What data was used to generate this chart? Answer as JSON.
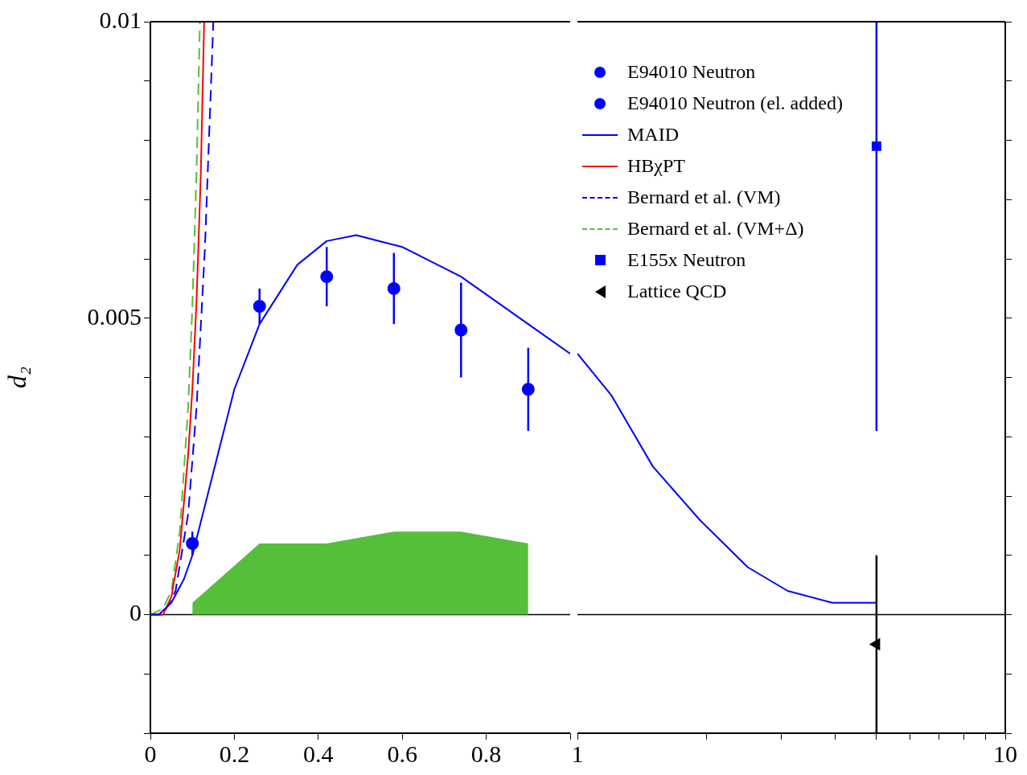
{
  "chart_data": [
    {
      "type": "scatter",
      "ylabel": "d₂",
      "xlim": [
        0,
        1
      ],
      "xticks": [
        0,
        0.2,
        0.4,
        0.6,
        0.8,
        {
          "value": 1,
          "label": null
        }
      ],
      "ylim": [
        -0.002,
        0.01
      ],
      "yticks": [
        {
          "value": -0.002,
          "label": null
        },
        {
          "value": -0.001,
          "label": null
        },
        0,
        {
          "value": 0.001,
          "label": null
        },
        {
          "value": 0.002,
          "label": null
        },
        {
          "value": 0.003,
          "label": null
        },
        {
          "value": 0.004,
          "label": null
        },
        0.005,
        {
          "value": 0.006,
          "label": null
        },
        {
          "value": 0.007,
          "label": null
        },
        {
          "value": 0.008,
          "label": null
        },
        {
          "value": 0.009,
          "label": null
        },
        0.01
      ],
      "grid": false,
      "legend": "top right",
      "ref_lines": [
        {
          "axis": "y",
          "value": 0,
          "color": "#000000"
        }
      ],
      "series": [
        {
          "type": "area",
          "color": "#55bf3b",
          "x": [
            0.1,
            0.26,
            0.42,
            0.58,
            0.74,
            0.9
          ],
          "values": [
            0.0002,
            0.0012,
            0.0012,
            0.0014,
            0.0014,
            0.0012
          ]
        },
        {
          "name": "E94010 Neutron",
          "color": "#0000ff",
          "marker": "circle",
          "x": [
            0.1,
            0.26,
            0.42,
            0.58,
            0.74,
            0.9
          ],
          "values": [
            0.0012,
            0.0052,
            0.0057,
            0.0055,
            0.0048,
            0.0038
          ],
          "errors": [
            0.0002,
            0.0003,
            0.0005,
            0.0006,
            0.0008,
            0.0007
          ]
        },
        {
          "name": "E94010 Neutron (el. added)",
          "color": "#0000ff",
          "marker": "circle"
        },
        {
          "type": "line",
          "name": "MAID",
          "color": "#0000ff",
          "line_style": "solid",
          "marker": "none",
          "x": [
            0,
            0.02,
            0.05,
            0.08,
            0.1,
            0.15,
            0.2,
            0.26,
            0.35,
            0.42,
            0.49,
            0.6,
            0.74,
            0.9,
            1
          ],
          "values": [
            0,
            0,
            0.0002,
            0.0006,
            0.001,
            0.0024,
            0.0038,
            0.0049,
            0.0059,
            0.0063,
            0.0064,
            0.0062,
            0.0057,
            0.0049,
            0.0044
          ]
        },
        {
          "type": "line",
          "name": "HBχPT",
          "color": "#ff0000",
          "line_style": "solid",
          "marker": "none",
          "x": [
            0,
            0.03,
            0.05,
            0.07,
            0.09,
            0.1,
            0.11,
            0.12,
            0.128
          ],
          "values": [
            0,
            0,
            0.0003,
            0.0011,
            0.0027,
            0.0038,
            0.0053,
            0.0074,
            0.01
          ]
        },
        {
          "type": "line",
          "name": "Bernard et al. (VM)",
          "color": "#0000ff",
          "line_style": "dashed",
          "marker": "none",
          "x": [
            0,
            0.03,
            0.06,
            0.09,
            0.11,
            0.13,
            0.15
          ],
          "values": [
            0,
            0,
            0.0004,
            0.0017,
            0.0035,
            0.0062,
            0.01
          ]
        },
        {
          "type": "line",
          "name": "Bernard et al. (VM+Δ)",
          "color": "#55bf3b",
          "line_style": "dashed",
          "marker": "none",
          "x": [
            0,
            0.03,
            0.05,
            0.07,
            0.09,
            0.1,
            0.11,
            0.118
          ],
          "values": [
            0,
            0.0001,
            0.0004,
            0.0014,
            0.0035,
            0.0052,
            0.0075,
            0.01
          ]
        }
      ]
    },
    {
      "type": "scatter",
      "log": "x",
      "tick_labels": "x",
      "legend": "top left",
      "xlim": [
        1,
        10
      ],
      "xticks": [
        1,
        {
          "value": 2,
          "label": null
        },
        {
          "value": 3,
          "label": null
        },
        {
          "value": 4,
          "label": null
        },
        {
          "value": 5,
          "label": null
        },
        {
          "value": 6,
          "label": null
        },
        {
          "value": 7,
          "label": null
        },
        {
          "value": 8,
          "label": null
        },
        {
          "value": 9,
          "label": null
        },
        10
      ],
      "ylim": [
        -0.002,
        0.01
      ],
      "yticks": [
        {
          "value": -0.002,
          "label": null
        },
        {
          "value": -0.001,
          "label": null
        },
        {
          "value": 0,
          "label": null
        },
        {
          "value": 0.001,
          "label": null
        },
        {
          "value": 0.002,
          "label": null
        },
        {
          "value": 0.003,
          "label": null
        },
        {
          "value": 0.004,
          "label": null
        },
        {
          "value": 0.005,
          "label": null
        },
        {
          "value": 0.006,
          "label": null
        },
        {
          "value": 0.007,
          "label": null
        },
        {
          "value": 0.008,
          "label": null
        },
        {
          "value": 0.009,
          "label": null
        },
        {
          "value": 0.01,
          "label": null
        }
      ],
      "grid": false,
      "ref_lines": [
        {
          "axis": "y",
          "value": 0,
          "color": "#000000"
        }
      ],
      "series": [
        {
          "type": "line",
          "color": "#0000ff",
          "line_style": "solid",
          "marker": "none",
          "x": [
            1,
            1.2,
            1.5,
            1.93,
            2.5,
            3.1,
            3.94,
            5
          ],
          "values": [
            0.0044,
            0.0037,
            0.0025,
            0.0016,
            0.0008,
            0.0004,
            0.0002,
            0.0002
          ]
        },
        {
          "name": "E155x Neutron",
          "color": "#0000ff",
          "marker": "square",
          "x": [
            5
          ],
          "values": [
            0.0079
          ],
          "errors": [
            [
              0.0031,
              0.01
            ]
          ]
        },
        {
          "name": "Lattice QCD",
          "color": "#000000",
          "marker": "triangle",
          "x": [
            5
          ],
          "values": [
            -0.0005
          ],
          "errors": [
            [
              -0.002,
              0.001
            ]
          ]
        }
      ]
    }
  ]
}
